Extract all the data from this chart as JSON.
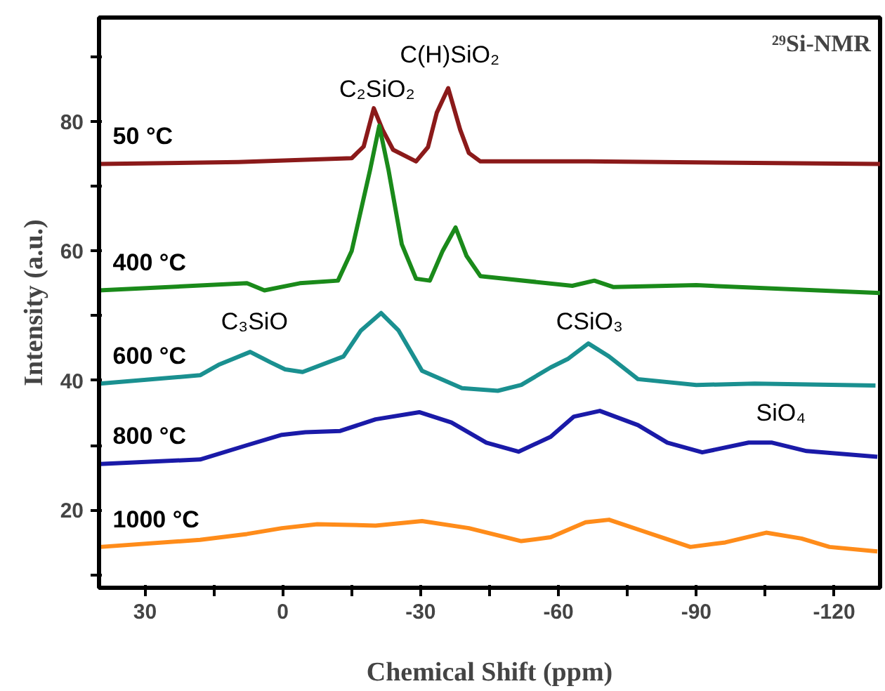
{
  "chart_data": {
    "type": "line",
    "xlabel": "Chemical Shift (ppm)",
    "ylabel": "Intensity (a.u.)",
    "xlim": [
      40,
      -130
    ],
    "ylim": [
      8,
      96
    ],
    "xticks": [
      30,
      {
        "value": 15,
        "label": null
      },
      0,
      {
        "value": -15,
        "label": null
      },
      -30,
      {
        "value": -45,
        "label": null
      },
      -60,
      {
        "value": -75,
        "label": null
      },
      -90,
      {
        "value": -105,
        "label": null
      },
      -120
    ],
    "yticks": [
      {
        "value": 10,
        "label": null
      },
      20,
      {
        "value": 30,
        "label": null
      },
      40,
      {
        "value": 50,
        "label": null
      },
      60,
      {
        "value": 70,
        "label": null
      },
      80,
      {
        "value": 90,
        "label": null
      }
    ],
    "grid": false,
    "marker": "none",
    "line_style": "solid",
    "series": [
      {
        "name": "50 °C",
        "color": "#8b1a1a",
        "x": [
          40,
          9.7,
          -15,
          -17.6,
          -19.8,
          -21.7,
          -24,
          -29,
          -31.6,
          -33.5,
          -36,
          -38.6,
          -40.5,
          -43,
          -66.5,
          -130
        ],
        "values": [
          73.4,
          73.7,
          74.3,
          76.1,
          82.0,
          78.7,
          75.6,
          73.8,
          76.0,
          81.3,
          85.1,
          78.7,
          75.1,
          73.8,
          73.8,
          73.4
        ]
      },
      {
        "name": "400 °C",
        "color": "#1a8a1a",
        "x": [
          40,
          7.8,
          4,
          -3.7,
          -12,
          -15,
          -19,
          -21,
          -23,
          -25.9,
          -29,
          -32,
          -34.8,
          -37.6,
          -40,
          -43,
          -63,
          -67.8,
          -72,
          -90,
          -130
        ],
        "values": [
          53.9,
          55.0,
          53.9,
          55.0,
          55.4,
          60.0,
          72.5,
          79.3,
          72.5,
          61.0,
          55.7,
          55.4,
          60.0,
          63.6,
          59.2,
          56.1,
          54.6,
          55.4,
          54.4,
          54.7,
          53.5
        ]
      },
      {
        "name": "600 °C",
        "color": "#1a9090",
        "x": [
          39.8,
          18,
          14,
          7.1,
          2.7,
          -0.5,
          -4.3,
          -13.2,
          -17,
          -21.4,
          -25.2,
          -30.3,
          -39,
          -46.8,
          -51.9,
          -58.3,
          -62,
          -66.5,
          -71,
          -77.3,
          -90,
          -102.7,
          -129
        ],
        "values": [
          39.5,
          40.8,
          42.4,
          44.4,
          42.8,
          41.7,
          41.3,
          43.7,
          47.7,
          50.4,
          47.7,
          41.5,
          38.8,
          38.4,
          39.3,
          42.0,
          43.3,
          45.7,
          43.7,
          40.2,
          39.3,
          39.5,
          39.2
        ]
      },
      {
        "name": "800 °C",
        "color": "#1a1aa8",
        "x": [
          39.8,
          18,
          7.8,
          0.2,
          -4.9,
          -12.5,
          -20.2,
          -29.7,
          -36.7,
          -44.3,
          -51.3,
          -58.3,
          -63.3,
          -69,
          -77.3,
          -83.7,
          -91.3,
          -101.4,
          -106.5,
          -114,
          -129.4
        ],
        "values": [
          27.1,
          27.8,
          30.0,
          31.6,
          32.0,
          32.2,
          34.0,
          35.1,
          33.5,
          30.4,
          29.0,
          31.3,
          34.4,
          35.3,
          33.1,
          30.4,
          28.9,
          30.4,
          30.4,
          29.1,
          28.2
        ]
      },
      {
        "name": "1000 °C",
        "color": "#ff8c1a",
        "x": [
          39.8,
          18,
          7.8,
          0.2,
          -7.5,
          -20.2,
          -30.3,
          -40.5,
          -51.9,
          -58.3,
          -65.9,
          -71,
          -78.6,
          -88.7,
          -96.3,
          -105.2,
          -112.9,
          -119,
          -129.4
        ],
        "values": [
          14.3,
          15.4,
          16.3,
          17.2,
          17.8,
          17.6,
          18.3,
          17.2,
          15.2,
          15.8,
          18.1,
          18.5,
          16.7,
          14.3,
          15.0,
          16.5,
          15.6,
          14.3,
          13.6
        ]
      }
    ],
    "annotations": [
      "²⁹Si-NMR",
      "C(H)SiO₂",
      "C₂SiO₂",
      "C₃SiO",
      "CSiO₃",
      "SiO₄"
    ]
  }
}
